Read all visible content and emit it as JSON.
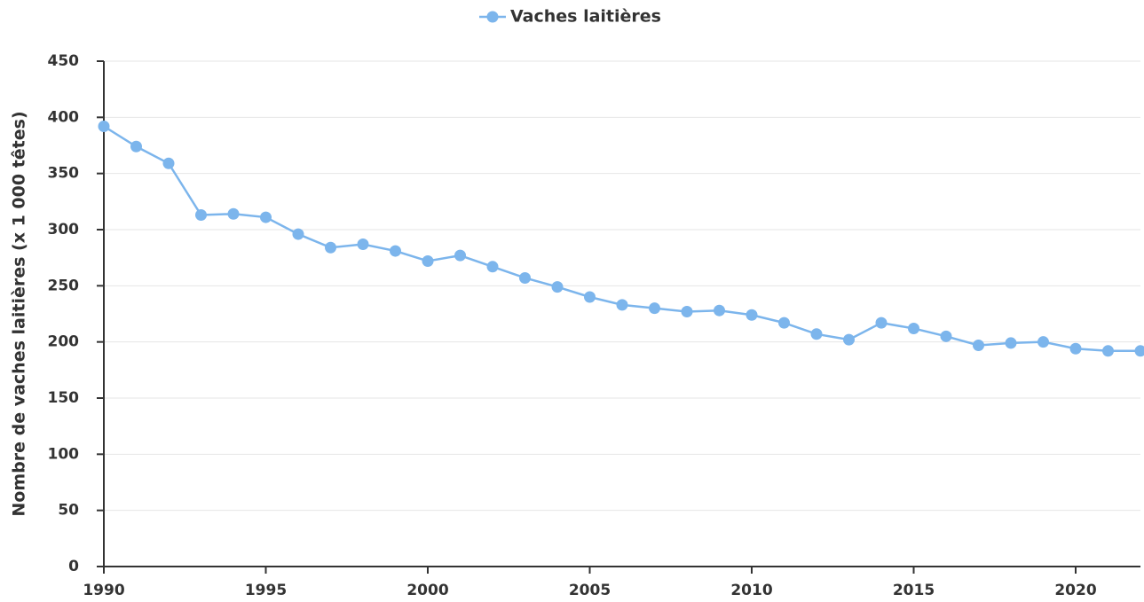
{
  "chart_data": {
    "type": "line",
    "y_label": "Nombre de vaches laitières (x 1 000 têtes)",
    "x": [
      1990,
      1991,
      1992,
      1993,
      1994,
      1995,
      1996,
      1997,
      1998,
      1999,
      2000,
      2001,
      2002,
      2003,
      2004,
      2005,
      2006,
      2007,
      2008,
      2009,
      2010,
      2011,
      2012,
      2013,
      2014,
      2015,
      2016,
      2017,
      2018,
      2019,
      2020,
      2021,
      2022
    ],
    "series": [
      {
        "name": "Vaches laitières",
        "color": "#7cb5ec",
        "values": [
          392,
          374,
          359,
          313,
          314,
          311,
          296,
          284,
          287,
          281,
          272,
          277,
          267,
          257,
          249,
          240,
          233,
          230,
          227,
          228,
          224,
          217,
          207,
          202,
          217,
          212,
          205,
          197,
          199,
          200,
          194,
          192,
          192
        ]
      }
    ],
    "xlim": [
      1990,
      2022
    ],
    "xticks": [
      1990,
      1995,
      2000,
      2005,
      2010,
      2015,
      2020
    ],
    "ylim": [
      0,
      450
    ],
    "yticks": [
      0,
      50,
      100,
      150,
      200,
      250,
      300,
      350,
      400,
      450
    ],
    "grid": true,
    "legend": "top"
  }
}
